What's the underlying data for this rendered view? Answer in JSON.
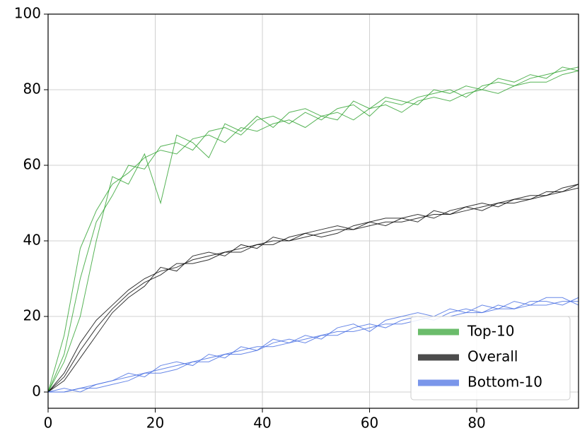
{
  "chart_data": {
    "type": "line",
    "x": [
      0,
      3,
      6,
      9,
      12,
      15,
      18,
      21,
      24,
      27,
      30,
      33,
      36,
      39,
      42,
      45,
      48,
      51,
      54,
      57,
      60,
      63,
      66,
      69,
      72,
      75,
      78,
      81,
      84,
      87,
      90,
      93,
      96,
      99
    ],
    "series": [
      {
        "name": "Top-10",
        "color": "#2ca02c",
        "runs": [
          [
            0,
            15,
            38,
            48,
            55,
            58,
            62,
            64,
            63,
            67,
            68,
            66,
            70,
            69,
            71,
            72,
            70,
            73,
            74,
            72,
            75,
            76,
            74,
            77,
            78,
            77,
            79,
            80,
            79,
            81,
            82,
            82,
            84,
            85
          ],
          [
            0,
            10,
            30,
            45,
            52,
            60,
            59,
            65,
            66,
            64,
            69,
            70,
            68,
            72,
            73,
            71,
            74,
            72,
            75,
            76,
            73,
            77,
            76,
            78,
            79,
            80,
            78,
            81,
            82,
            81,
            83,
            84,
            85,
            86
          ],
          [
            0,
            8,
            20,
            40,
            57,
            55,
            63,
            50,
            68,
            66,
            62,
            71,
            69,
            73,
            70,
            74,
            75,
            73,
            72,
            77,
            75,
            78,
            77,
            76,
            80,
            79,
            81,
            80,
            83,
            82,
            84,
            83,
            86,
            85
          ]
        ]
      },
      {
        "name": "Overall",
        "color": "#000000",
        "runs": [
          [
            0,
            5,
            13,
            19,
            23,
            27,
            30,
            32,
            33,
            35,
            36,
            37,
            38,
            39,
            40,
            40,
            41,
            42,
            43,
            43,
            44,
            45,
            45,
            46,
            47,
            47,
            48,
            49,
            50,
            50,
            51,
            52,
            53,
            54
          ],
          [
            0,
            4,
            11,
            17,
            22,
            26,
            29,
            31,
            34,
            34,
            35,
            37,
            37,
            39,
            39,
            41,
            42,
            41,
            42,
            44,
            45,
            44,
            46,
            47,
            46,
            48,
            49,
            48,
            50,
            51,
            52,
            52,
            54,
            55
          ],
          [
            0,
            3,
            9,
            15,
            21,
            25,
            28,
            33,
            32,
            36,
            37,
            36,
            39,
            38,
            41,
            40,
            42,
            43,
            44,
            43,
            45,
            46,
            46,
            45,
            48,
            47,
            49,
            50,
            49,
            51,
            51,
            53,
            53,
            55
          ]
        ]
      },
      {
        "name": "Bottom-10",
        "color": "#4169e1",
        "runs": [
          [
            0,
            0,
            1,
            2,
            3,
            4,
            5,
            6,
            7,
            8,
            9,
            10,
            11,
            12,
            12,
            13,
            14,
            15,
            16,
            16,
            17,
            18,
            18,
            19,
            20,
            20,
            21,
            21,
            22,
            22,
            23,
            23,
            24,
            24
          ],
          [
            0,
            0,
            1,
            1,
            2,
            3,
            5,
            5,
            6,
            8,
            8,
            10,
            10,
            11,
            13,
            14,
            13,
            15,
            15,
            17,
            18,
            17,
            19,
            20,
            19,
            21,
            22,
            21,
            23,
            22,
            24,
            24,
            23,
            25
          ],
          [
            0,
            1,
            0,
            2,
            3,
            5,
            4,
            7,
            8,
            7,
            10,
            9,
            12,
            11,
            14,
            13,
            15,
            14,
            17,
            18,
            16,
            19,
            20,
            21,
            20,
            22,
            21,
            23,
            22,
            24,
            23,
            25,
            25,
            23
          ]
        ]
      }
    ],
    "xlim": [
      0,
      99
    ],
    "ylim": [
      -4.3,
      100
    ],
    "xticks": [
      0,
      20,
      40,
      60,
      80
    ],
    "yticks": [
      0,
      20,
      40,
      60,
      80,
      100
    ],
    "grid": true,
    "legend": "lower right"
  }
}
